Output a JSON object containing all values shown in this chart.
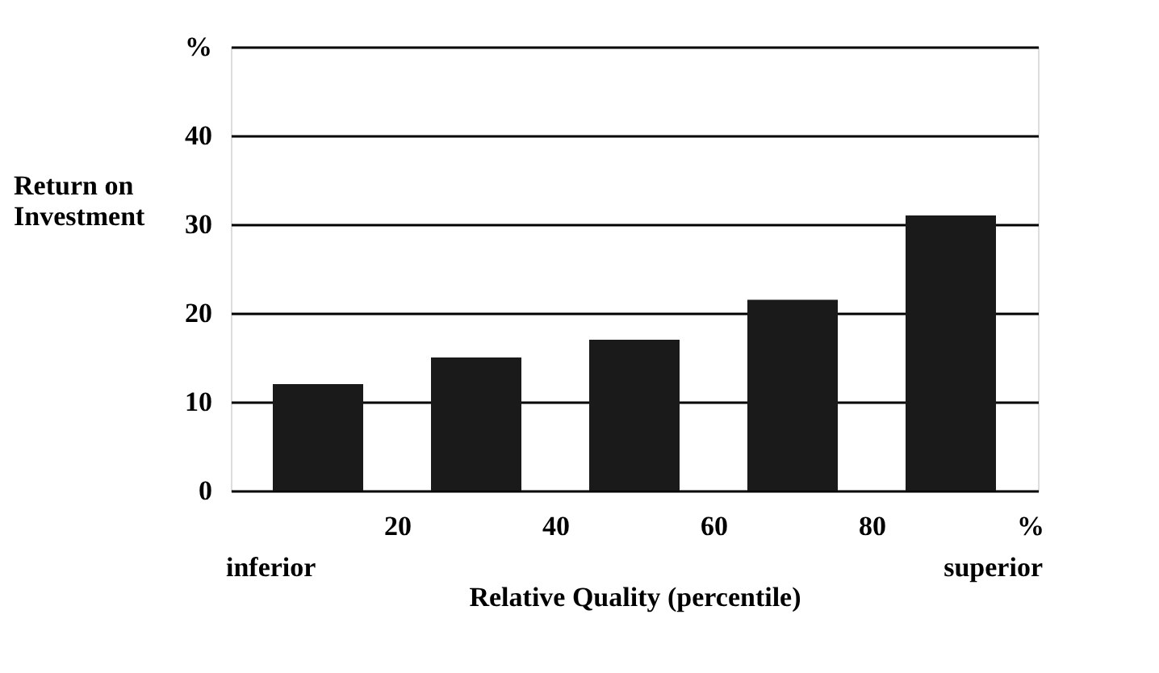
{
  "chart_data": {
    "type": "bar",
    "ylabel": "Return on Investment",
    "xlabel": "Relative Quality (percentile)",
    "x": [
      10,
      30,
      50,
      70,
      90
    ],
    "values": [
      12,
      15,
      17,
      21.5,
      31
    ],
    "color": "#1a1a1a",
    "xlim": [
      0,
      100
    ],
    "xticks": [
      20,
      40,
      60,
      80,
      {
        "value": 100,
        "label": "%"
      }
    ],
    "ylim": [
      0,
      50
    ],
    "yticks": [
      0,
      10,
      20,
      30,
      40,
      {
        "value": 50,
        "label": "%"
      }
    ],
    "grid": "y",
    "annotations": [
      "inferior",
      "superior"
    ]
  }
}
